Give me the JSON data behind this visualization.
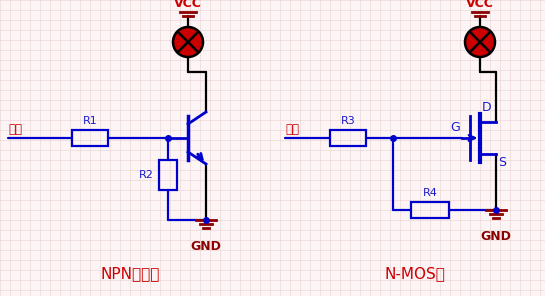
{
  "bg_color": "#fdf5f5",
  "grid_color": "#e8d0d0",
  "line_color": "#0000cd",
  "label_color_red": "#cc0000",
  "label_color_blue": "#1a1acd",
  "lamp_color": "#cc0000",
  "gnd_color": "#8b0000",
  "title_left": "NPN三極管",
  "title_right": "N-MOS管",
  "vcc_label": "VCC",
  "gnd_label": "GND",
  "input_label": "輸入",
  "r1_label": "R1",
  "r2_label": "R2",
  "r3_label": "R3",
  "r4_label": "R4",
  "g_label": "G",
  "d_label": "D",
  "s_label": "S"
}
